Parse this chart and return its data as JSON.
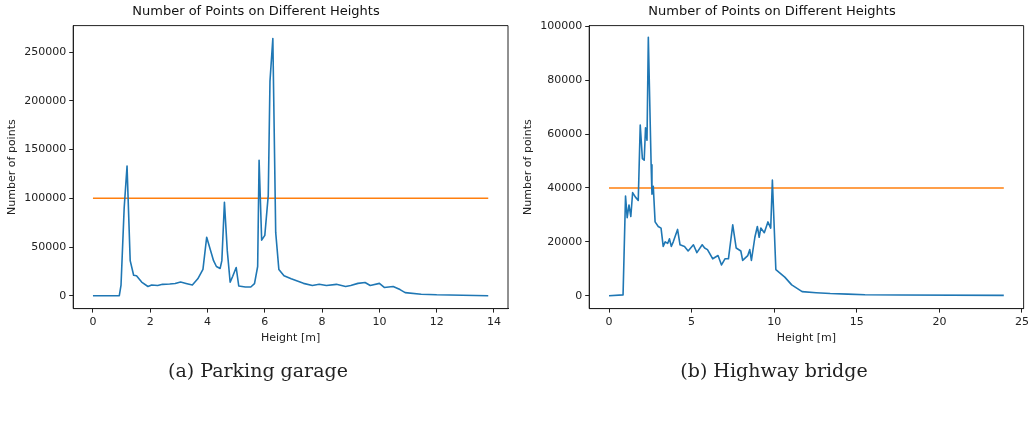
{
  "chart_data": [
    {
      "type": "line",
      "title": "Number of Points on Different Heights",
      "xlabel": "Height [m]",
      "ylabel": "Number of points",
      "annotations": [
        "(a) Parking garage"
      ],
      "xlim": [
        -0.69,
        14.49
      ],
      "ylim": [
        -13200,
        277200
      ],
      "xticks": [
        0,
        2,
        4,
        6,
        8,
        10,
        12,
        14
      ],
      "yticks": [
        0,
        50000,
        100000,
        150000,
        200000,
        250000
      ],
      "series": [
        {
          "color": "#1f77b4",
          "x": [
            0,
            0.92,
            0.98,
            1.09,
            1.19,
            1.3,
            1.42,
            1.52,
            1.7,
            1.92,
            2.05,
            2.26,
            2.43,
            2.68,
            2.87,
            3.06,
            3.25,
            3.47,
            3.66,
            3.84,
            3.97,
            4.21,
            4.31,
            4.44,
            4.5,
            4.59,
            4.69,
            4.79,
            4.88,
            5.0,
            5.09,
            5.32,
            5.51,
            5.64,
            5.75,
            5.8,
            5.89,
            6.0,
            6.12,
            6.18,
            6.28,
            6.38,
            6.49,
            6.67,
            6.92,
            7.23,
            7.35,
            7.66,
            7.9,
            8.15,
            8.5,
            8.82,
            9.0,
            9.25,
            9.5,
            9.68,
            10.0,
            10.17,
            10.48,
            10.72,
            10.9,
            11.46,
            12.0,
            13.8
          ],
          "values": [
            0,
            0,
            11000,
            90000,
            133000,
            36000,
            21000,
            20500,
            14000,
            9500,
            11000,
            10500,
            11700,
            12000,
            12600,
            14000,
            12600,
            11000,
            17400,
            27000,
            60000,
            36000,
            30000,
            28000,
            36000,
            96000,
            46000,
            14000,
            20000,
            29000,
            10000,
            9000,
            9000,
            12500,
            30000,
            139000,
            57000,
            62000,
            103000,
            220000,
            264000,
            65000,
            27000,
            20500,
            17400,
            14000,
            12700,
            10500,
            11700,
            10500,
            11700,
            9500,
            10500,
            12700,
            13600,
            10500,
            12700,
            8500,
            9500,
            6300,
            3200,
            1600,
            950,
            0
          ]
        },
        {
          "color": "#ff7f0e",
          "x": [
            0,
            13.8
          ],
          "values": [
            100000,
            100000
          ]
        }
      ]
    },
    {
      "type": "line",
      "title": "Number of Points on Different Heights",
      "xlabel": "Height [m]",
      "ylabel": "Number of points",
      "annotations": [
        "(b) Highway bridge"
      ],
      "xlim": [
        -1.2,
        25.1
      ],
      "ylim": [
        -4800,
        100300
      ],
      "xticks": [
        0,
        5,
        10,
        15,
        20,
        25
      ],
      "yticks": [
        0,
        20000,
        40000,
        60000,
        80000,
        100000
      ],
      "series": [
        {
          "color": "#1f77b4",
          "x": [
            0,
            0.85,
            1.0,
            1.1,
            1.21,
            1.32,
            1.43,
            1.6,
            1.77,
            1.89,
            2.02,
            2.13,
            2.21,
            2.3,
            2.38,
            2.55,
            2.6,
            2.68,
            2.79,
            2.98,
            3.15,
            3.28,
            3.4,
            3.55,
            3.66,
            3.77,
            3.89,
            4.15,
            4.3,
            4.57,
            4.79,
            5.11,
            5.32,
            5.64,
            5.79,
            5.96,
            6.28,
            6.6,
            6.81,
            7.02,
            7.23,
            7.49,
            7.7,
            7.98,
            8.09,
            8.4,
            8.52,
            8.62,
            8.83,
            8.98,
            9.09,
            9.19,
            9.4,
            9.62,
            9.79,
            9.89,
            10.1,
            10.64,
            11.06,
            11.69,
            12.54,
            13.39,
            14.45,
            15.5,
            17.6,
            23.9
          ],
          "values": [
            0,
            300,
            37000,
            29000,
            33700,
            29400,
            38300,
            36600,
            35400,
            63400,
            50900,
            50300,
            62300,
            57700,
            96000,
            48600,
            37700,
            40600,
            27400,
            25700,
            25100,
            18300,
            20000,
            19400,
            21100,
            18300,
            20000,
            24600,
            18900,
            18300,
            16600,
            18900,
            16000,
            18900,
            17700,
            17100,
            13700,
            14900,
            11400,
            13700,
            13700,
            26300,
            17700,
            16600,
            13100,
            14900,
            17100,
            13100,
            21700,
            25700,
            21700,
            25100,
            23400,
            27400,
            25100,
            42900,
            9700,
            6900,
            4000,
            1500,
            1100,
            800,
            570,
            340,
            230,
            110
          ]
        },
        {
          "color": "#ff7f0e",
          "x": [
            0,
            23.9
          ],
          "values": [
            40000,
            40000
          ]
        }
      ]
    }
  ]
}
